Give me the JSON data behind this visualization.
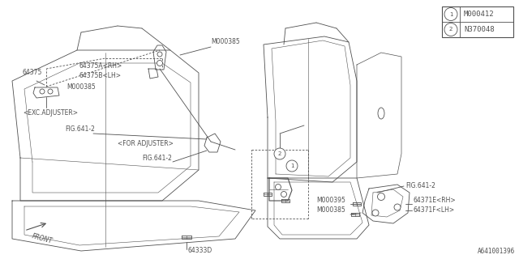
{
  "bg_color": "#ffffff",
  "line_color": "#505050",
  "text_color": "#505050",
  "legend_items": [
    {
      "num": "1",
      "code": "M000412"
    },
    {
      "num": "2",
      "code": "N370048"
    }
  ],
  "watermark": "A641001396",
  "fig_w": 640,
  "fig_h": 320
}
